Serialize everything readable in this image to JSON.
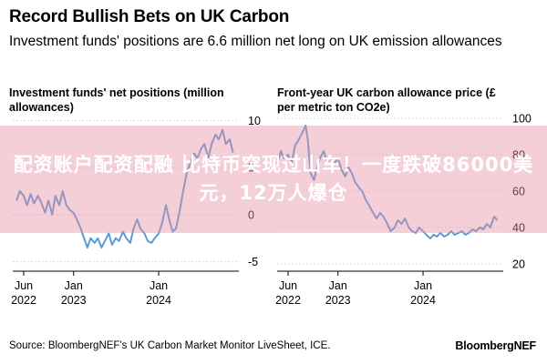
{
  "header": {
    "title": "Record Bullish Bets on UK Carbon",
    "subtitle": "Investment funds' positions are 6.6 million net long on UK emission allowances"
  },
  "footer": {
    "source": "Source: BloombergNEF's UK Carbon Market Monitor LiveSheet, ICE.",
    "brand": "BloombergNEF"
  },
  "overlay": {
    "text": "配资账户配资配融 比特币突现过山车！一度跌破86000美元，12万人爆仓"
  },
  "colors": {
    "line": "#5b9bd5",
    "grid": "#d0d0d0"
  },
  "chart_data": [
    {
      "type": "line",
      "title": "Investment funds' net positions (million allowances)",
      "yticks": [
        10,
        5,
        0,
        -5
      ],
      "ylim": [
        -6,
        11
      ],
      "xlim": [
        "2022-04-15",
        "2024-12-10"
      ],
      "xticks": [
        {
          "date": "2022-06-01",
          "label": [
            "Jun",
            "2022"
          ]
        },
        {
          "date": "2023-01-01",
          "label": [
            "Jan",
            "2023"
          ]
        },
        {
          "date": "2024-01-01",
          "label": [
            "Jan",
            "2024"
          ]
        }
      ],
      "series": [
        {
          "points": [
            [
              "2022-05-01",
              1.5
            ],
            [
              "2022-05-15",
              2.5
            ],
            [
              "2022-06-01",
              2.0
            ],
            [
              "2022-06-15",
              1.0
            ],
            [
              "2022-07-01",
              2.2
            ],
            [
              "2022-07-15",
              1.2
            ],
            [
              "2022-08-01",
              2.0
            ],
            [
              "2022-08-15",
              1.3
            ],
            [
              "2022-09-01",
              0.2
            ],
            [
              "2022-09-15",
              1.5
            ],
            [
              "2022-10-01",
              0.0
            ],
            [
              "2022-10-15",
              2.0
            ],
            [
              "2022-11-01",
              1.0
            ],
            [
              "2022-11-15",
              2.5
            ],
            [
              "2022-12-01",
              1.0
            ],
            [
              "2022-12-15",
              0.5
            ],
            [
              "2023-01-01",
              0.2
            ],
            [
              "2023-01-15",
              -0.5
            ],
            [
              "2023-02-01",
              -1.5
            ],
            [
              "2023-02-15",
              -2.5
            ],
            [
              "2023-03-01",
              -3.5
            ],
            [
              "2023-03-15",
              -2.5
            ],
            [
              "2023-04-01",
              -3.0
            ],
            [
              "2023-04-15",
              -2.5
            ],
            [
              "2023-05-01",
              -3.5
            ],
            [
              "2023-05-15",
              -2.8
            ],
            [
              "2023-06-01",
              -2.0
            ],
            [
              "2023-06-15",
              -3.2
            ],
            [
              "2023-07-01",
              -2.5
            ],
            [
              "2023-07-15",
              -2.8
            ],
            [
              "2023-08-01",
              -1.8
            ],
            [
              "2023-08-15",
              -2.5
            ],
            [
              "2023-09-01",
              -3.0
            ],
            [
              "2023-09-15",
              -1.5
            ],
            [
              "2023-10-01",
              -0.5
            ],
            [
              "2023-10-15",
              -1.5
            ],
            [
              "2023-11-01",
              -2.0
            ],
            [
              "2023-11-15",
              -2.8
            ],
            [
              "2023-12-01",
              -3.0
            ],
            [
              "2023-12-15",
              -2.5
            ],
            [
              "2024-01-01",
              -2.0
            ],
            [
              "2024-01-15",
              -1.0
            ],
            [
              "2024-02-01",
              1.0
            ],
            [
              "2024-02-15",
              -0.5
            ],
            [
              "2024-03-01",
              -1.8
            ],
            [
              "2024-03-15",
              -1.5
            ],
            [
              "2024-04-01",
              0.5
            ],
            [
              "2024-04-15",
              2.5
            ],
            [
              "2024-05-01",
              4.5
            ],
            [
              "2024-05-15",
              5.5
            ],
            [
              "2024-06-01",
              6.5
            ],
            [
              "2024-06-15",
              6.0
            ],
            [
              "2024-07-01",
              7.0
            ],
            [
              "2024-07-15",
              7.5
            ],
            [
              "2024-08-01",
              6.0
            ],
            [
              "2024-08-15",
              7.5
            ],
            [
              "2024-09-01",
              8.5
            ],
            [
              "2024-09-15",
              8.0
            ],
            [
              "2024-10-01",
              9.0
            ],
            [
              "2024-10-15",
              7.5
            ],
            [
              "2024-11-01",
              8.0
            ],
            [
              "2024-11-15",
              6.6
            ]
          ]
        }
      ]
    },
    {
      "type": "line",
      "title": "Front-year UK carbon allowance price (£ per metric ton CO2e)",
      "yticks": [
        100,
        80,
        60,
        40,
        20
      ],
      "ylim": [
        16,
        104
      ],
      "xlim": [
        "2022-04-15",
        "2024-12-10"
      ],
      "xticks": [
        {
          "date": "2022-06-01",
          "label": [
            "Jun",
            "2022"
          ]
        },
        {
          "date": "2023-01-01",
          "label": [
            "Jan",
            "2023"
          ]
        },
        {
          "date": "2024-01-01",
          "label": [
            "Jan",
            "2024"
          ]
        }
      ],
      "series": [
        {
          "points": [
            [
              "2022-04-15",
              75
            ],
            [
              "2022-05-01",
              82
            ],
            [
              "2022-05-15",
              78
            ],
            [
              "2022-06-01",
              80
            ],
            [
              "2022-06-15",
              75
            ],
            [
              "2022-07-01",
              85
            ],
            [
              "2022-07-15",
              88
            ],
            [
              "2022-08-01",
              92
            ],
            [
              "2022-08-15",
              96
            ],
            [
              "2022-08-25",
              88
            ],
            [
              "2022-09-05",
              70
            ],
            [
              "2022-09-20",
              66
            ],
            [
              "2022-10-01",
              72
            ],
            [
              "2022-10-15",
              78
            ],
            [
              "2022-11-01",
              82
            ],
            [
              "2022-11-15",
              76
            ],
            [
              "2022-12-01",
              78
            ],
            [
              "2022-12-15",
              75
            ],
            [
              "2023-01-01",
              78
            ],
            [
              "2023-01-15",
              72
            ],
            [
              "2023-02-01",
              68
            ],
            [
              "2023-02-15",
              73
            ],
            [
              "2023-03-01",
              70
            ],
            [
              "2023-03-15",
              65
            ],
            [
              "2023-04-01",
              62
            ],
            [
              "2023-04-15",
              60
            ],
            [
              "2023-05-01",
              55
            ],
            [
              "2023-05-15",
              52
            ],
            [
              "2023-06-01",
              48
            ],
            [
              "2023-06-15",
              45
            ],
            [
              "2023-07-01",
              48
            ],
            [
              "2023-07-15",
              46
            ],
            [
              "2023-08-01",
              42
            ],
            [
              "2023-08-15",
              38
            ],
            [
              "2023-09-01",
              40
            ],
            [
              "2023-09-15",
              44
            ],
            [
              "2023-10-01",
              42
            ],
            [
              "2023-10-15",
              45
            ],
            [
              "2023-11-01",
              40
            ],
            [
              "2023-11-15",
              38
            ],
            [
              "2023-12-01",
              37
            ],
            [
              "2023-12-15",
              40
            ],
            [
              "2024-01-01",
              38
            ],
            [
              "2024-01-15",
              36
            ],
            [
              "2024-02-01",
              34
            ],
            [
              "2024-02-15",
              36
            ],
            [
              "2024-03-01",
              35
            ],
            [
              "2024-03-15",
              37
            ],
            [
              "2024-04-01",
              35
            ],
            [
              "2024-04-15",
              36
            ],
            [
              "2024-05-01",
              38
            ],
            [
              "2024-05-15",
              36
            ],
            [
              "2024-06-01",
              37
            ],
            [
              "2024-06-15",
              38
            ],
            [
              "2024-07-01",
              36
            ],
            [
              "2024-07-15",
              37
            ],
            [
              "2024-08-01",
              39
            ],
            [
              "2024-08-15",
              38
            ],
            [
              "2024-09-01",
              40
            ],
            [
              "2024-09-15",
              39
            ],
            [
              "2024-10-01",
              42
            ],
            [
              "2024-10-15",
              40
            ],
            [
              "2024-11-01",
              46
            ],
            [
              "2024-11-15",
              44
            ]
          ]
        }
      ]
    }
  ]
}
